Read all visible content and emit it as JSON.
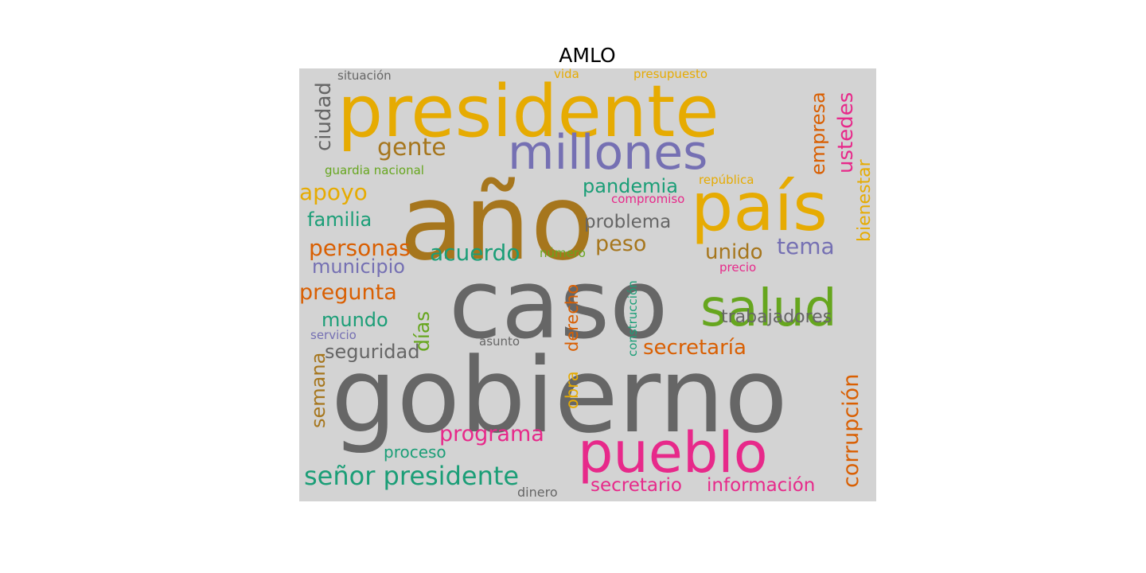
{
  "title": "AMLO",
  "palette": {
    "background": "#d3d3d3",
    "gray": "#666666",
    "gold": "#e6ab02",
    "brown": "#a6761d",
    "purple": "#7570b3",
    "green": "#66a61e",
    "magenta": "#e7298a",
    "orange": "#d95f02",
    "teal": "#1b9e77"
  },
  "words": [
    {
      "text": "presidente",
      "color": "#e6ab02"
    },
    {
      "text": "año",
      "color": "#a6761d"
    },
    {
      "text": "caso",
      "color": "#666666"
    },
    {
      "text": "gobierno",
      "color": "#666666"
    },
    {
      "text": "millones",
      "color": "#7570b3"
    },
    {
      "text": "país",
      "color": "#e6ab02"
    },
    {
      "text": "salud",
      "color": "#66a61e"
    },
    {
      "text": "pueblo",
      "color": "#e7298a"
    },
    {
      "text": "señor presidente",
      "color": "#1b9e77"
    },
    {
      "text": "gente",
      "color": "#a6761d"
    },
    {
      "text": "pandemia",
      "color": "#1b9e77"
    },
    {
      "text": "apoyo",
      "color": "#e6ab02"
    },
    {
      "text": "familia",
      "color": "#1b9e77"
    },
    {
      "text": "problema",
      "color": "#666666"
    },
    {
      "text": "personas",
      "color": "#d95f02"
    },
    {
      "text": "peso",
      "color": "#a6761d"
    },
    {
      "text": "acuerdo",
      "color": "#1b9e77"
    },
    {
      "text": "tema",
      "color": "#7570b3"
    },
    {
      "text": "unido",
      "color": "#a6761d"
    },
    {
      "text": "municipio",
      "color": "#7570b3"
    },
    {
      "text": "pregunta",
      "color": "#d95f02"
    },
    {
      "text": "mundo",
      "color": "#1b9e77"
    },
    {
      "text": "seguridad",
      "color": "#666666"
    },
    {
      "text": "secretaría",
      "color": "#d95f02"
    },
    {
      "text": "trabajadores",
      "color": "#666666"
    },
    {
      "text": "programa",
      "color": "#e7298a"
    },
    {
      "text": "proceso",
      "color": "#1b9e77"
    },
    {
      "text": "secretario",
      "color": "#e7298a"
    },
    {
      "text": "información",
      "color": "#e7298a"
    },
    {
      "text": "dinero",
      "color": "#666666"
    },
    {
      "text": "situación",
      "color": "#666666"
    },
    {
      "text": "vida",
      "color": "#e6ab02"
    },
    {
      "text": "presupuesto",
      "color": "#e6ab02"
    },
    {
      "text": "guardia nacional",
      "color": "#66a61e"
    },
    {
      "text": "república",
      "color": "#e6ab02"
    },
    {
      "text": "compromiso",
      "color": "#e7298a"
    },
    {
      "text": "número",
      "color": "#66a61e"
    },
    {
      "text": "precio",
      "color": "#e7298a"
    },
    {
      "text": "servicio",
      "color": "#7570b3"
    },
    {
      "text": "asunto",
      "color": "#666666"
    },
    {
      "text": "ciudad",
      "color": "#666666"
    },
    {
      "text": "empresa",
      "color": "#d95f02"
    },
    {
      "text": "ustedes",
      "color": "#e7298a"
    },
    {
      "text": "bienestar",
      "color": "#e6ab02"
    },
    {
      "text": "días",
      "color": "#66a61e"
    },
    {
      "text": "derecho",
      "color": "#d95f02"
    },
    {
      "text": "obra",
      "color": "#e6ab02"
    },
    {
      "text": "construcción",
      "color": "#1b9e77"
    },
    {
      "text": "semana",
      "color": "#a6761d"
    },
    {
      "text": "corrupción",
      "color": "#d95f02"
    }
  ]
}
